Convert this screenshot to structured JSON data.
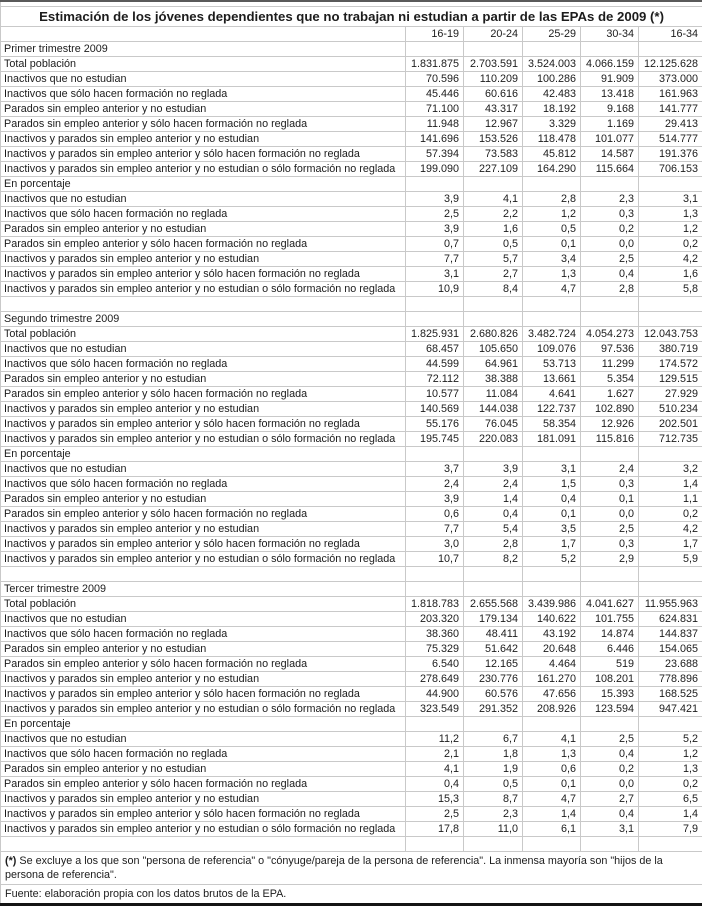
{
  "title": "Estimación de los jóvenes dependientes que no trabajan ni estudian a partir de las EPAs de 2009 (*)",
  "columns": [
    "16-19",
    "20-24",
    "25-29",
    "30-34",
    "16-34"
  ],
  "sections": [
    {
      "name": "Primer trimestre 2009",
      "pct_label": "En porcentaje",
      "rows": [
        [
          "Total población",
          "1.831.875",
          "2.703.591",
          "3.524.003",
          "4.066.159",
          "12.125.628"
        ],
        [
          "Inactivos que no estudian",
          "70.596",
          "110.209",
          "100.286",
          "91.909",
          "373.000"
        ],
        [
          "Inactivos que sólo hacen formación no reglada",
          "45.446",
          "60.616",
          "42.483",
          "13.418",
          "161.963"
        ],
        [
          "Parados sin empleo anterior y no estudian",
          "71.100",
          "43.317",
          "18.192",
          "9.168",
          "141.777"
        ],
        [
          "Parados sin empleo anterior y sólo hacen formación no reglada",
          "11.948",
          "12.967",
          "3.329",
          "1.169",
          "29.413"
        ],
        [
          "Inactivos y parados sin empleo anterior y no estudian",
          "141.696",
          "153.526",
          "118.478",
          "101.077",
          "514.777"
        ],
        [
          "Inactivos y parados sin empleo anterior y sólo hacen formación no reglada",
          "57.394",
          "73.583",
          "45.812",
          "14.587",
          "191.376"
        ],
        [
          "Inactivos y parados sin empleo anterior y no estudian o sólo formación no reglada",
          "199.090",
          "227.109",
          "164.290",
          "115.664",
          "706.153"
        ]
      ],
      "pct_rows": [
        [
          "Inactivos que no estudian",
          "3,9",
          "4,1",
          "2,8",
          "2,3",
          "3,1"
        ],
        [
          "Inactivos que sólo hacen formación no reglada",
          "2,5",
          "2,2",
          "1,2",
          "0,3",
          "1,3"
        ],
        [
          "Parados sin empleo anterior y no estudian",
          "3,9",
          "1,6",
          "0,5",
          "0,2",
          "1,2"
        ],
        [
          "Parados sin empleo anterior y sólo hacen formación no reglada",
          "0,7",
          "0,5",
          "0,1",
          "0,0",
          "0,2"
        ],
        [
          "Inactivos y parados sin empleo anterior y no estudian",
          "7,7",
          "5,7",
          "3,4",
          "2,5",
          "4,2"
        ],
        [
          "Inactivos y parados sin empleo anterior y sólo hacen formación no reglada",
          "3,1",
          "2,7",
          "1,3",
          "0,4",
          "1,6"
        ],
        [
          "Inactivos y parados sin empleo anterior y no estudian o sólo formación no reglada",
          "10,9",
          "8,4",
          "4,7",
          "2,8",
          "5,8"
        ]
      ]
    },
    {
      "name": "Segundo trimestre 2009",
      "pct_label": "En porcentaje",
      "rows": [
        [
          "Total población",
          "1.825.931",
          "2.680.826",
          "3.482.724",
          "4.054.273",
          "12.043.753"
        ],
        [
          "Inactivos que no estudian",
          "68.457",
          "105.650",
          "109.076",
          "97.536",
          "380.719"
        ],
        [
          "Inactivos que sólo hacen formación no reglada",
          "44.599",
          "64.961",
          "53.713",
          "11.299",
          "174.572"
        ],
        [
          "Parados sin empleo anterior y no estudian",
          "72.112",
          "38.388",
          "13.661",
          "5.354",
          "129.515"
        ],
        [
          "Parados sin empleo anterior y sólo hacen formación no reglada",
          "10.577",
          "11.084",
          "4.641",
          "1.627",
          "27.929"
        ],
        [
          "Inactivos y parados sin empleo anterior y no estudian",
          "140.569",
          "144.038",
          "122.737",
          "102.890",
          "510.234"
        ],
        [
          "Inactivos y parados sin empleo anterior y sólo hacen formación no reglada",
          "55.176",
          "76.045",
          "58.354",
          "12.926",
          "202.501"
        ],
        [
          "Inactivos y parados sin empleo anterior y no estudian o sólo formación no reglada",
          "195.745",
          "220.083",
          "181.091",
          "115.816",
          "712.735"
        ]
      ],
      "pct_rows": [
        [
          "Inactivos que no estudian",
          "3,7",
          "3,9",
          "3,1",
          "2,4",
          "3,2"
        ],
        [
          "Inactivos que sólo hacen formación no reglada",
          "2,4",
          "2,4",
          "1,5",
          "0,3",
          "1,4"
        ],
        [
          "Parados sin empleo anterior y no estudian",
          "3,9",
          "1,4",
          "0,4",
          "0,1",
          "1,1"
        ],
        [
          "Parados sin empleo anterior y sólo hacen formación no reglada",
          "0,6",
          "0,4",
          "0,1",
          "0,0",
          "0,2"
        ],
        [
          "Inactivos y parados sin empleo anterior y no estudian",
          "7,7",
          "5,4",
          "3,5",
          "2,5",
          "4,2"
        ],
        [
          "Inactivos y parados sin empleo anterior y sólo hacen formación no reglada",
          "3,0",
          "2,8",
          "1,7",
          "0,3",
          "1,7"
        ],
        [
          "Inactivos y parados sin empleo anterior y no estudian o sólo formación no reglada",
          "10,7",
          "8,2",
          "5,2",
          "2,9",
          "5,9"
        ]
      ]
    },
    {
      "name": "Tercer trimestre 2009",
      "pct_label": "En porcentaje",
      "rows": [
        [
          "Total población",
          "1.818.783",
          "2.655.568",
          "3.439.986",
          "4.041.627",
          "11.955.963"
        ],
        [
          "Inactivos que no estudian",
          "203.320",
          "179.134",
          "140.622",
          "101.755",
          "624.831"
        ],
        [
          "Inactivos que sólo hacen formación no reglada",
          "38.360",
          "48.411",
          "43.192",
          "14.874",
          "144.837"
        ],
        [
          "Parados sin empleo anterior y no estudian",
          "75.329",
          "51.642",
          "20.648",
          "6.446",
          "154.065"
        ],
        [
          "Parados sin empleo anterior y sólo hacen formación no reglada",
          "6.540",
          "12.165",
          "4.464",
          "519",
          "23.688"
        ],
        [
          "Inactivos y parados sin empleo anterior y no estudian",
          "278.649",
          "230.776",
          "161.270",
          "108.201",
          "778.896"
        ],
        [
          "Inactivos y parados sin empleo anterior y sólo hacen formación no reglada",
          "44.900",
          "60.576",
          "47.656",
          "15.393",
          "168.525"
        ],
        [
          "Inactivos y parados sin empleo anterior y no estudian o sólo formación no reglada",
          "323.549",
          "291.352",
          "208.926",
          "123.594",
          "947.421"
        ]
      ],
      "pct_rows": [
        [
          "Inactivos que no estudian",
          "11,2",
          "6,7",
          "4,1",
          "2,5",
          "5,2"
        ],
        [
          "Inactivos que sólo hacen formación no reglada",
          "2,1",
          "1,8",
          "1,3",
          "0,4",
          "1,2"
        ],
        [
          "Parados sin empleo anterior y no estudian",
          "4,1",
          "1,9",
          "0,6",
          "0,2",
          "1,3"
        ],
        [
          "Parados sin empleo anterior y sólo hacen formación no reglada",
          "0,4",
          "0,5",
          "0,1",
          "0,0",
          "0,2"
        ],
        [
          "Inactivos y parados sin empleo anterior y no estudian",
          "15,3",
          "8,7",
          "4,7",
          "2,7",
          "6,5"
        ],
        [
          "Inactivos y parados sin empleo anterior y sólo hacen formación no reglada",
          "2,5",
          "2,3",
          "1,4",
          "0,4",
          "1,4"
        ],
        [
          "Inactivos y parados sin empleo anterior y no estudian o sólo formación no reglada",
          "17,8",
          "11,0",
          "6,1",
          "3,1",
          "7,9"
        ]
      ]
    }
  ],
  "footnote_marker": "(*)",
  "footnote_text": " Se excluye a los que son \"persona de referencia\" o \"cónyuge/pareja de la persona de referencia\". La inmensa mayoría son \"hijos de la persona de referencia\".",
  "source": "Fuente: elaboración propia con los datos brutos de la EPA.",
  "colors": {
    "grid": "#c9c9c9",
    "text": "#1c1c1c",
    "border_top": "#5a5a5a",
    "border_bottom": "#141414"
  }
}
